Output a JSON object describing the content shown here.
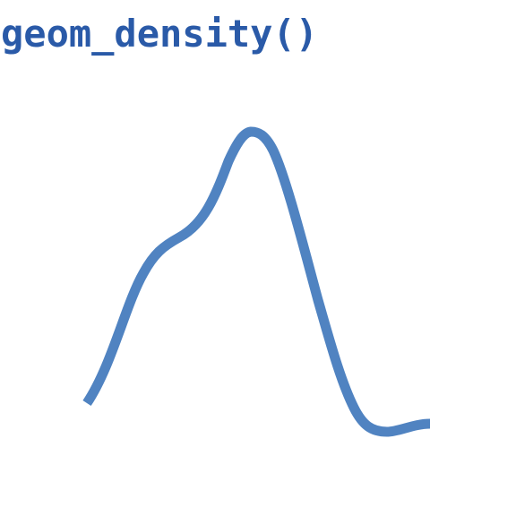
{
  "title": "geom_density()",
  "colors": {
    "title": "#2a5aa8",
    "curve": "#5083c1",
    "background": "#ffffff"
  },
  "chart_data": {
    "type": "area",
    "series": [
      {
        "values": [
          0.2,
          0.57,
          0.68,
          1.0,
          0.62,
          0.04,
          0.0,
          0.03
        ]
      }
    ]
  }
}
